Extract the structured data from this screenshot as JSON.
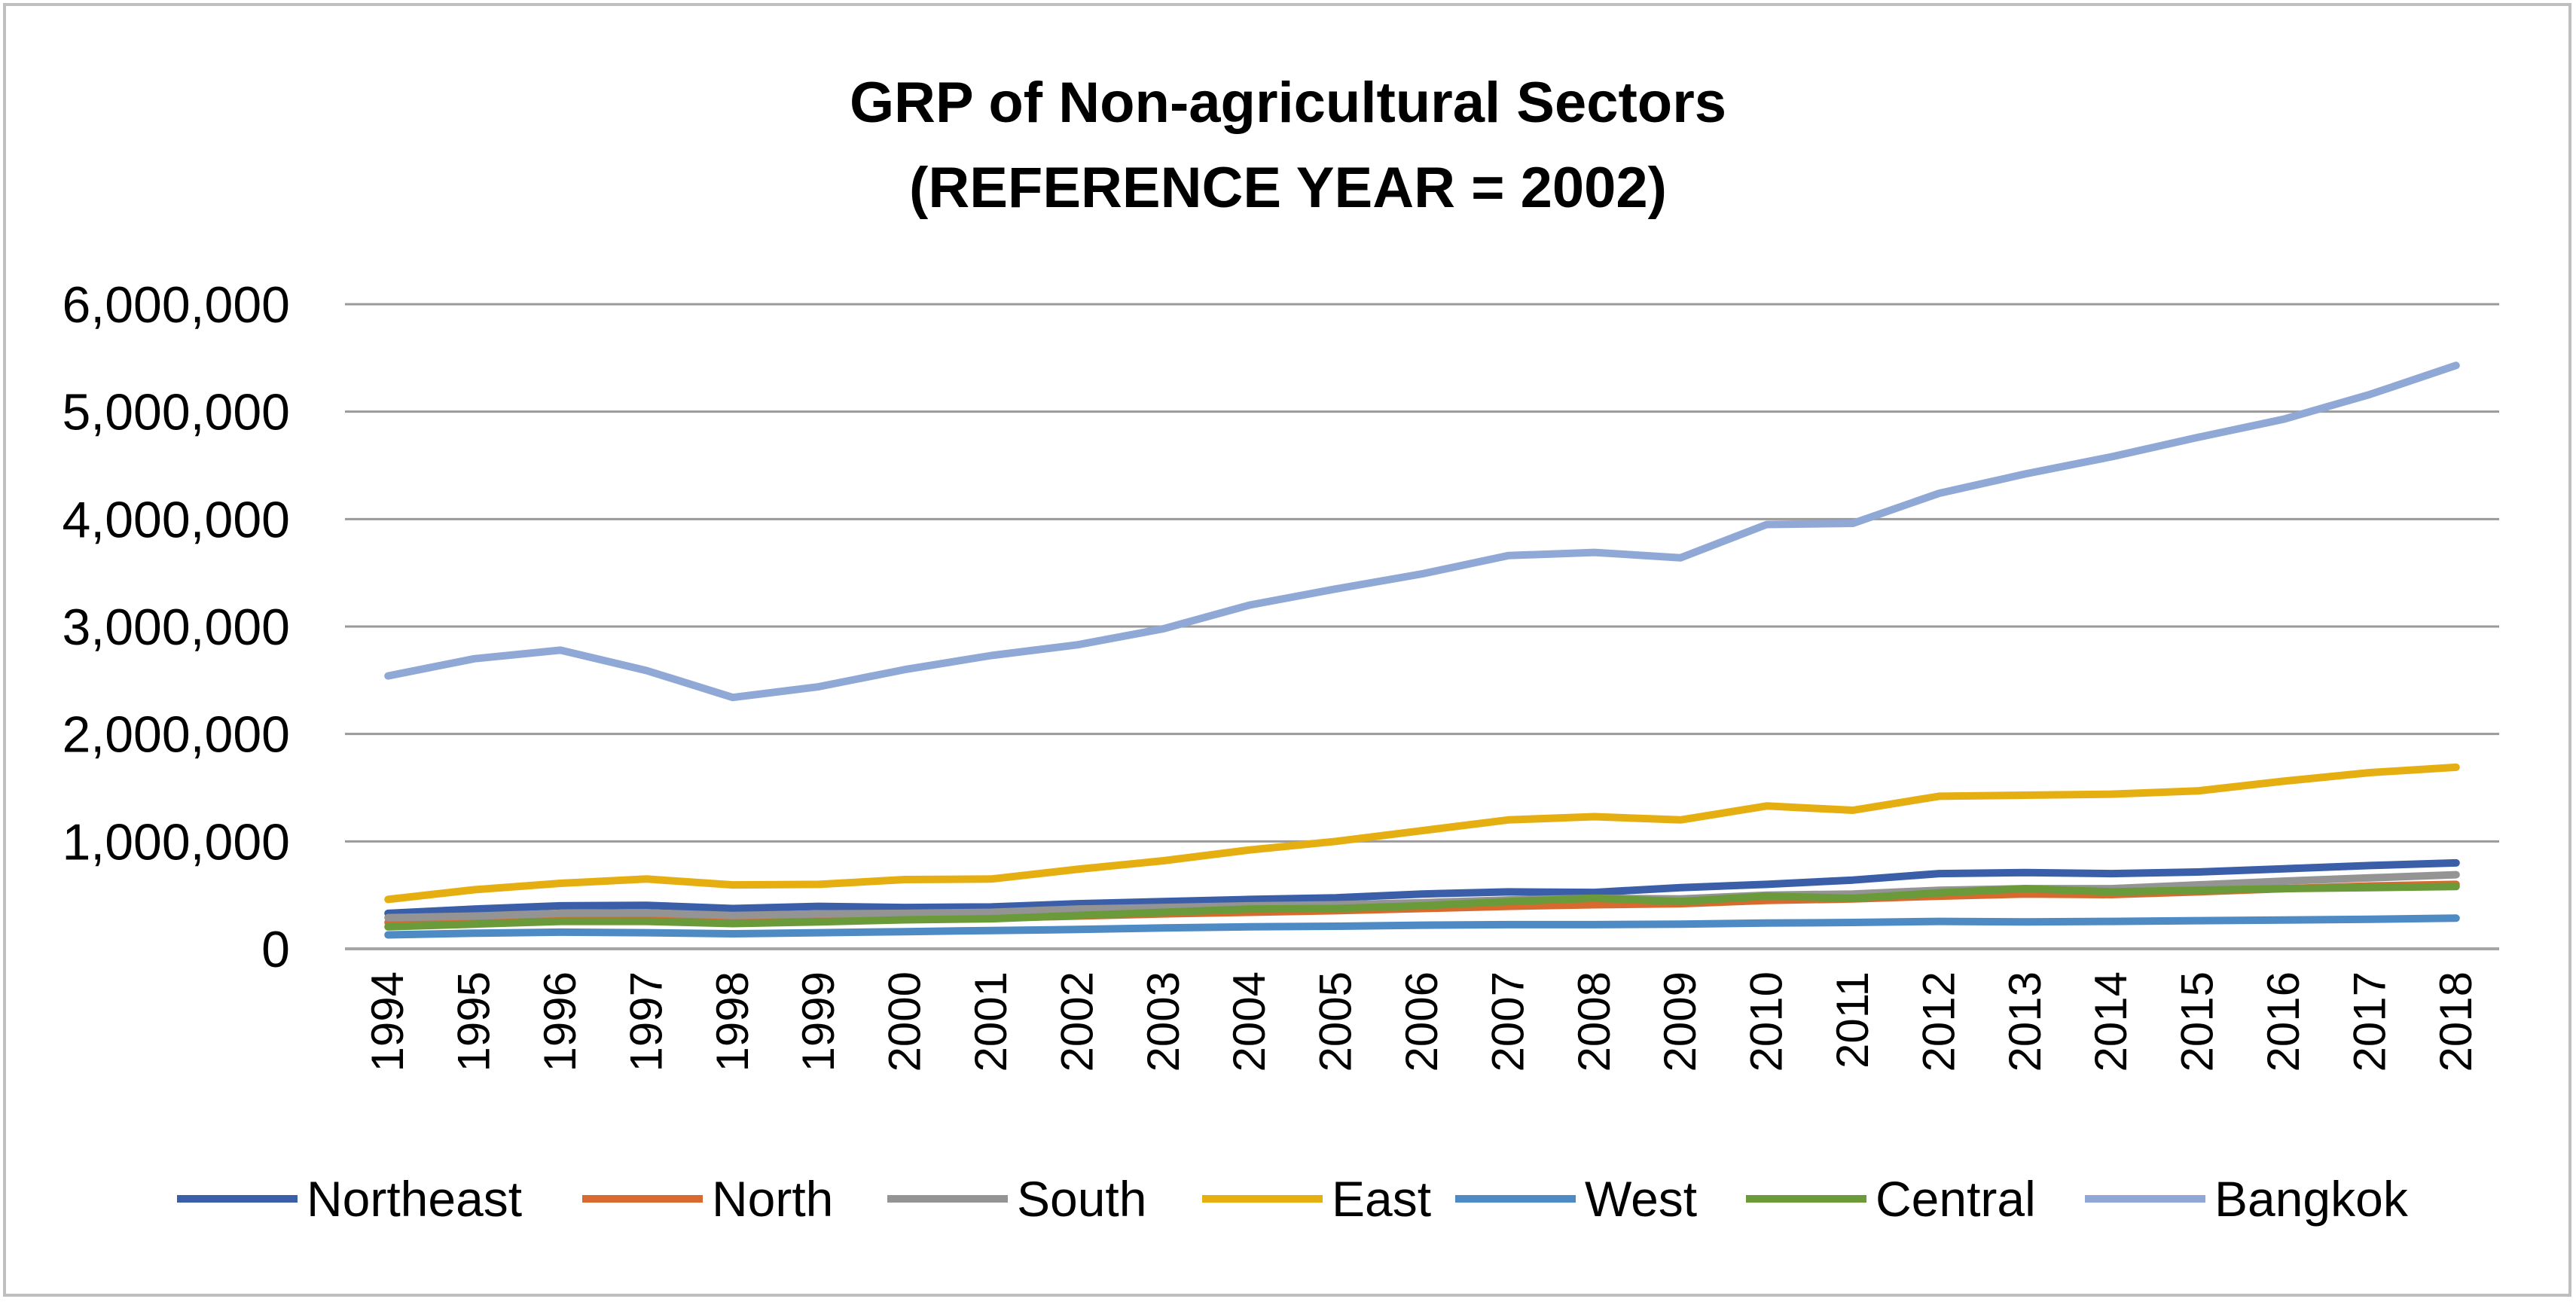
{
  "chart_data": {
    "type": "line",
    "title": "GRP of Non-agricultural Sectors",
    "subtitle": "(REFERENCE YEAR = 2002)",
    "xlabel": "",
    "ylabel": "",
    "ylim": [
      0,
      6000000
    ],
    "yticks": [
      0,
      1000000,
      2000000,
      3000000,
      4000000,
      5000000,
      6000000
    ],
    "ytick_labels": [
      "0",
      "1,000,000",
      "2,000,000",
      "3,000,000",
      "4,000,000",
      "5,000,000",
      "6,000,000"
    ],
    "grid": true,
    "legend_position": "bottom",
    "categories": [
      "1994",
      "1995",
      "1996",
      "1997",
      "1998",
      "1999",
      "2000",
      "2001",
      "2002",
      "2003",
      "2004",
      "2005",
      "2006",
      "2007",
      "2008",
      "2009",
      "2010",
      "2011",
      "2012",
      "2013",
      "2014",
      "2015",
      "2016",
      "2017",
      "2018"
    ],
    "series": [
      {
        "name": "Northeast",
        "color": "#3a5ea8",
        "values": [
          330000,
          370000,
          400000,
          405000,
          375000,
          395000,
          385000,
          390000,
          420000,
          440000,
          460000,
          475000,
          510000,
          530000,
          525000,
          570000,
          600000,
          640000,
          700000,
          710000,
          700000,
          715000,
          745000,
          775000,
          800000
        ]
      },
      {
        "name": "North",
        "color": "#d86a30",
        "values": [
          245000,
          260000,
          275000,
          275000,
          255000,
          265000,
          275000,
          285000,
          305000,
          325000,
          340000,
          355000,
          375000,
          395000,
          410000,
          420000,
          450000,
          465000,
          490000,
          510000,
          505000,
          530000,
          560000,
          585000,
          600000
        ]
      },
      {
        "name": "South",
        "color": "#949494",
        "values": [
          290000,
          305000,
          330000,
          335000,
          310000,
          325000,
          330000,
          340000,
          370000,
          385000,
          400000,
          410000,
          430000,
          455000,
          470000,
          465000,
          500000,
          510000,
          545000,
          560000,
          560000,
          595000,
          630000,
          660000,
          690000
        ]
      },
      {
        "name": "East",
        "color": "#e5af12",
        "values": [
          460000,
          550000,
          610000,
          650000,
          595000,
          600000,
          645000,
          650000,
          740000,
          820000,
          920000,
          1000000,
          1100000,
          1200000,
          1230000,
          1200000,
          1330000,
          1290000,
          1420000,
          1430000,
          1440000,
          1470000,
          1560000,
          1640000,
          1690000
        ]
      },
      {
        "name": "West",
        "color": "#4e8ac4",
        "values": [
          130000,
          145000,
          155000,
          150000,
          140000,
          150000,
          160000,
          170000,
          180000,
          195000,
          205000,
          210000,
          220000,
          225000,
          225000,
          230000,
          240000,
          245000,
          255000,
          250000,
          255000,
          262000,
          268000,
          275000,
          285000
        ]
      },
      {
        "name": "Central",
        "color": "#6a9a3a",
        "values": [
          205000,
          230000,
          255000,
          255000,
          235000,
          250000,
          270000,
          280000,
          310000,
          340000,
          370000,
          375000,
          400000,
          440000,
          470000,
          440000,
          490000,
          470000,
          520000,
          560000,
          530000,
          545000,
          560000,
          570000,
          580000
        ]
      },
      {
        "name": "Bangkok",
        "color": "#8fa8d6",
        "values": [
          2540000,
          2700000,
          2780000,
          2590000,
          2340000,
          2440000,
          2600000,
          2730000,
          2830000,
          2980000,
          3200000,
          3350000,
          3490000,
          3660000,
          3690000,
          3640000,
          3950000,
          3960000,
          4240000,
          4420000,
          4580000,
          4760000,
          4930000,
          5160000,
          5430000
        ]
      }
    ]
  }
}
